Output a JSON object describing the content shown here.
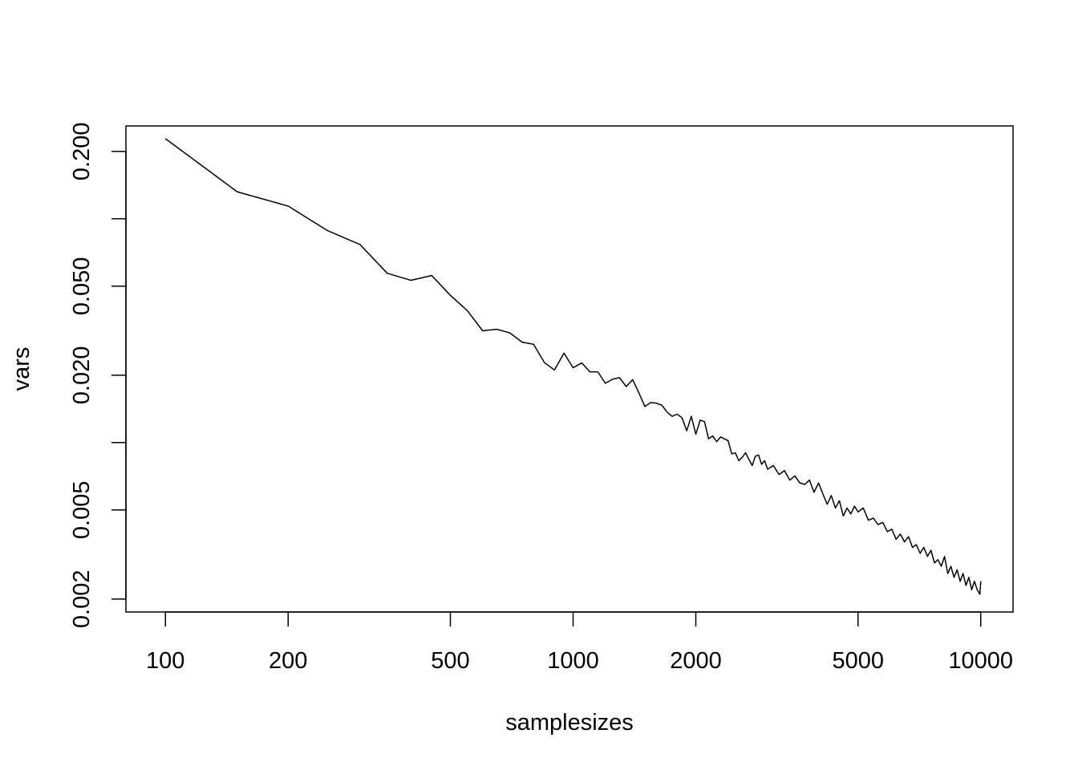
{
  "chart_data": {
    "type": "line",
    "title": "",
    "xlabel": "samplesizes",
    "ylabel": "vars",
    "xscale": "log",
    "yscale": "log",
    "xlim": [
      80,
      12000
    ],
    "ylim": [
      0.00175,
      0.26
    ],
    "x_ticks": [
      100,
      200,
      500,
      1000,
      2000,
      5000,
      10000
    ],
    "x_tick_labels": [
      "100",
      "200",
      "500",
      "1000",
      "2000",
      "5000",
      "10000"
    ],
    "y_ticks": [
      0.002,
      0.005,
      0.02,
      0.05,
      0.2
    ],
    "y_tick_labels": [
      "0.002",
      "0.005",
      "0.020",
      "0.050",
      "0.200"
    ],
    "y_minor_ticks": [
      0.1,
      0.01
    ],
    "grid": false,
    "series": [
      {
        "color": "#000000",
        "x": [
          100,
          150,
          200,
          250,
          300,
          350,
          400,
          450,
          500,
          550,
          600,
          650,
          700,
          750,
          800,
          850,
          900,
          950,
          1000,
          1050,
          1100,
          1150,
          1200,
          1250,
          1300,
          1350,
          1400,
          1450,
          1500,
          1550,
          1600,
          1650,
          1700,
          1750,
          1800,
          1850,
          1900,
          1950,
          2000,
          2050,
          2100,
          2150,
          2200,
          2250,
          2300,
          2350,
          2400,
          2450,
          2500,
          2550,
          2600,
          2650,
          2700,
          2750,
          2800,
          2850,
          2900,
          2950,
          3000,
          3100,
          3200,
          3300,
          3400,
          3500,
          3600,
          3700,
          3800,
          3900,
          4000,
          4100,
          4200,
          4300,
          4400,
          4500,
          4600,
          4700,
          4800,
          4900,
          5000,
          5150,
          5300,
          5450,
          5600,
          5750,
          5900,
          6050,
          6200,
          6350,
          6500,
          6650,
          6800,
          6950,
          7100,
          7250,
          7400,
          7550,
          7700,
          7850,
          8000,
          8150,
          8300,
          8450,
          8600,
          8750,
          8900,
          9050,
          9200,
          9350,
          9500,
          9650,
          9800,
          9950,
          10000
        ],
        "y": [
          0.228,
          0.132,
          0.114,
          0.0885,
          0.0768,
          0.0571,
          0.0531,
          0.0558,
          0.0455,
          0.0389,
          0.0316,
          0.0321,
          0.0309,
          0.0281,
          0.0275,
          0.0228,
          0.0211,
          0.0251,
          0.0216,
          0.0227,
          0.0207,
          0.0207,
          0.0184,
          0.0192,
          0.0195,
          0.0178,
          0.0191,
          0.0167,
          0.0145,
          0.0151,
          0.015,
          0.0147,
          0.0137,
          0.0131,
          0.0134,
          0.0129,
          0.0113,
          0.0131,
          0.0109,
          0.0126,
          0.0124,
          0.0104,
          0.0107,
          0.0101,
          0.0106,
          0.0104,
          0.0102,
          0.0089,
          0.009,
          0.0083,
          0.0086,
          0.009,
          0.0084,
          0.0079,
          0.0087,
          0.0088,
          0.008,
          0.0083,
          0.0076,
          0.0079,
          0.0072,
          0.0075,
          0.0068,
          0.0071,
          0.0066,
          0.0065,
          0.0068,
          0.006,
          0.0066,
          0.0059,
          0.0053,
          0.0058,
          0.0051,
          0.0055,
          0.0047,
          0.0051,
          0.0048,
          0.0052,
          0.0049,
          0.0051,
          0.0045,
          0.0046,
          0.0043,
          0.0044,
          0.004,
          0.0041,
          0.0037,
          0.0039,
          0.0036,
          0.0038,
          0.0034,
          0.0035,
          0.0032,
          0.0034,
          0.0031,
          0.0033,
          0.0029,
          0.003,
          0.0028,
          0.0031,
          0.0026,
          0.0028,
          0.0025,
          0.0027,
          0.0024,
          0.0026,
          0.0023,
          0.0025,
          0.0022,
          0.0024,
          0.0022,
          0.0021,
          0.0024
        ]
      }
    ]
  }
}
